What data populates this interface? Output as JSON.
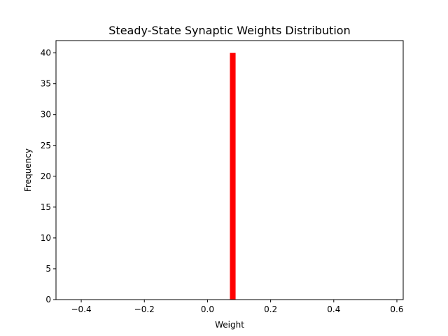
{
  "chart_data": {
    "type": "bar",
    "title": "Steady-State Synaptic Weights Distribution",
    "xlabel": "Weight",
    "ylabel": "Frequency",
    "xlim": [
      -0.48,
      0.62
    ],
    "ylim": [
      0,
      42
    ],
    "x_ticks": [
      -0.4,
      -0.2,
      0.0,
      0.2,
      0.4,
      0.6
    ],
    "x_tick_labels": [
      "−0.4",
      "−0.2",
      "0.0",
      "0.2",
      "0.4",
      "0.6"
    ],
    "y_ticks": [
      0,
      5,
      10,
      15,
      20,
      25,
      30,
      35,
      40
    ],
    "y_tick_labels": [
      "0",
      "5",
      "10",
      "15",
      "20",
      "25",
      "30",
      "35",
      "40"
    ],
    "bins": [
      {
        "x_start": 0.071,
        "x_end": 0.089,
        "value": 40
      }
    ],
    "bar_color": "#ff0000",
    "grid": false,
    "legend": "none"
  }
}
